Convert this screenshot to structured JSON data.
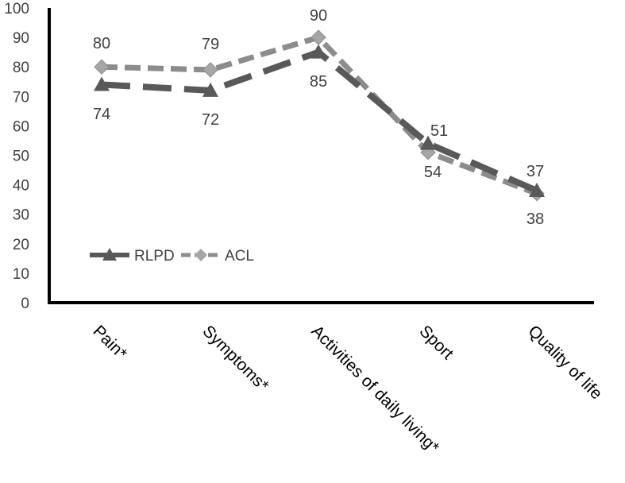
{
  "chart_data": {
    "type": "line",
    "categories": [
      "Pain*",
      "Symptoms*",
      "Activities of daily living*",
      "Sport",
      "Quality of life"
    ],
    "ylim": [
      0,
      100
    ],
    "yticks": [
      0,
      10,
      20,
      30,
      40,
      50,
      60,
      70,
      80,
      90,
      100
    ],
    "grid": false,
    "legend_position": "bottom-left",
    "series": [
      {
        "name": "RLPD",
        "values": [
          74,
          72,
          85,
          54,
          38
        ],
        "color": "#595959",
        "line_style": "long-dash",
        "marker": "triangle"
      },
      {
        "name": "ACL",
        "values": [
          80,
          79,
          90,
          51,
          37
        ],
        "color": "#8c8c8c",
        "line_style": "dash",
        "marker": "diamond"
      }
    ],
    "data_labels": [
      {
        "category_index": 0,
        "text": "80"
      },
      {
        "category_index": 0,
        "text": "74"
      },
      {
        "category_index": 1,
        "text": "79"
      },
      {
        "category_index": 1,
        "text": "72"
      },
      {
        "category_index": 2,
        "text": "90"
      },
      {
        "category_index": 2,
        "text": "85"
      },
      {
        "category_index": 3,
        "text": "51"
      },
      {
        "category_index": 3,
        "text": "54"
      },
      {
        "category_index": 4,
        "text": "37"
      },
      {
        "category_index": 4,
        "text": "38"
      }
    ]
  }
}
